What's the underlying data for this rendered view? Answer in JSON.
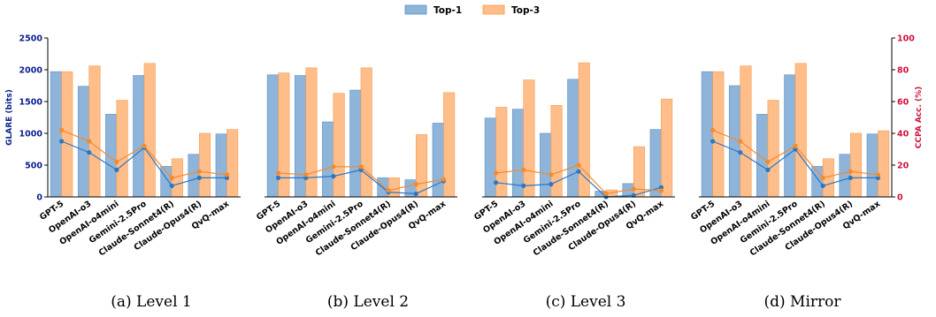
{
  "legend": {
    "top1": "Top-1",
    "top3": "Top-3"
  },
  "colors": {
    "top1_bar": "#8fb4d9",
    "top1_bar_edge": "#5b8fc7",
    "top3_bar": "#ffbd8a",
    "top3_bar_edge": "#f59b50",
    "top1_line": "#2a78c2",
    "top3_line": "#f28a2e",
    "left_axis": "#0b1f8c",
    "right_axis": "#d0103a"
  },
  "chart_data": [
    {
      "type": "bar",
      "caption": "(a) Level 1",
      "categories": [
        "GPT-5",
        "OpenAI-o3",
        "OpenAI-o4mini",
        "Gemini-2.5Pro",
        "Claude-Sonnet4(R)",
        "Claude-Opus4(R)",
        "QvQ-max"
      ],
      "ylabel": "GLARE (bits)",
      "ylim": [
        0,
        2500
      ],
      "yticks": [
        0,
        500,
        1000,
        1500,
        2000,
        2500
      ],
      "y2label": "",
      "y2lim": [
        0,
        100
      ],
      "series": [
        {
          "name": "Top-1",
          "kind": "bar",
          "axis": "left",
          "values": [
            1970,
            1740,
            1300,
            1910,
            480,
            670,
            990
          ]
        },
        {
          "name": "Top-3",
          "kind": "bar",
          "axis": "left",
          "values": [
            1970,
            2060,
            1520,
            2100,
            600,
            1000,
            1060
          ]
        },
        {
          "name": "Top-1",
          "kind": "line",
          "axis": "right",
          "values": [
            35,
            28,
            17,
            31,
            7,
            12,
            12
          ]
        },
        {
          "name": "Top-3",
          "kind": "line",
          "axis": "right",
          "values": [
            42,
            35,
            22,
            32,
            12,
            16,
            14
          ]
        }
      ]
    },
    {
      "type": "bar",
      "caption": "(b) Level 2",
      "categories": [
        "GPT-5",
        "OpenAI-o3",
        "OpenAI-o4mini",
        "Gemini-2.5Pro",
        "Claude-Sonnet4(R)",
        "Claude-Opus4(R)",
        "QvQ-max"
      ],
      "ylim": [
        0,
        2500
      ],
      "y2lim": [
        0,
        100
      ],
      "series": [
        {
          "name": "Top-1",
          "kind": "bar",
          "axis": "left",
          "values": [
            1920,
            1910,
            1180,
            1680,
            300,
            270,
            1160
          ]
        },
        {
          "name": "Top-3",
          "kind": "bar",
          "axis": "left",
          "values": [
            1950,
            2030,
            1630,
            2030,
            300,
            980,
            1640
          ]
        },
        {
          "name": "Top-1",
          "kind": "line",
          "axis": "right",
          "values": [
            12,
            12,
            13,
            17,
            3,
            2,
            10
          ]
        },
        {
          "name": "Top-3",
          "kind": "line",
          "axis": "right",
          "values": [
            15,
            14,
            19,
            19,
            4,
            8,
            11
          ]
        }
      ]
    },
    {
      "type": "bar",
      "caption": "(c) Level 3",
      "categories": [
        "GPT-5",
        "OpenAI-o3",
        "OpenAI-o4mini",
        "Gemini-2.5Pro",
        "Claude-Sonnet4(R)",
        "Claude-Opus4(R)",
        "QvQ-max"
      ],
      "ylim": [
        0,
        2500
      ],
      "y2lim": [
        0,
        100
      ],
      "series": [
        {
          "name": "Top-1",
          "kind": "bar",
          "axis": "left",
          "values": [
            1240,
            1380,
            1000,
            1850,
            90,
            210,
            1060
          ]
        },
        {
          "name": "Top-3",
          "kind": "bar",
          "axis": "left",
          "values": [
            1410,
            1840,
            1440,
            2110,
            110,
            790,
            1540
          ]
        },
        {
          "name": "Top-1",
          "kind": "line",
          "axis": "right",
          "values": [
            9,
            7,
            8,
            16,
            0,
            1,
            6
          ]
        },
        {
          "name": "Top-3",
          "kind": "line",
          "axis": "right",
          "values": [
            15,
            17,
            14,
            20,
            2,
            5,
            4
          ]
        }
      ]
    },
    {
      "type": "bar",
      "caption": "(d) Mirror",
      "categories": [
        "GPT-5",
        "OpenAI-o3",
        "OpenAI-o4mini",
        "Gemini-2.5Pro",
        "Claude-Sonnet4(R)",
        "Claude-Opus4(R)",
        "QvQ-max"
      ],
      "ylim": [
        0,
        2500
      ],
      "y2label": "CCPA Acc. (%)",
      "y2lim": [
        0,
        100
      ],
      "y2ticks": [
        0,
        20,
        40,
        60,
        80,
        100
      ],
      "series": [
        {
          "name": "Top-1",
          "kind": "bar",
          "axis": "left",
          "values": [
            1970,
            1750,
            1300,
            1920,
            480,
            670,
            990
          ]
        },
        {
          "name": "Top-3",
          "kind": "bar",
          "axis": "left",
          "values": [
            1970,
            2060,
            1520,
            2100,
            600,
            1000,
            1040
          ]
        },
        {
          "name": "Top-1",
          "kind": "line",
          "axis": "right",
          "values": [
            35,
            28,
            17,
            30,
            7,
            12,
            12
          ]
        },
        {
          "name": "Top-3",
          "kind": "line",
          "axis": "right",
          "values": [
            42,
            35,
            22,
            32,
            12,
            16,
            14
          ]
        }
      ]
    }
  ]
}
